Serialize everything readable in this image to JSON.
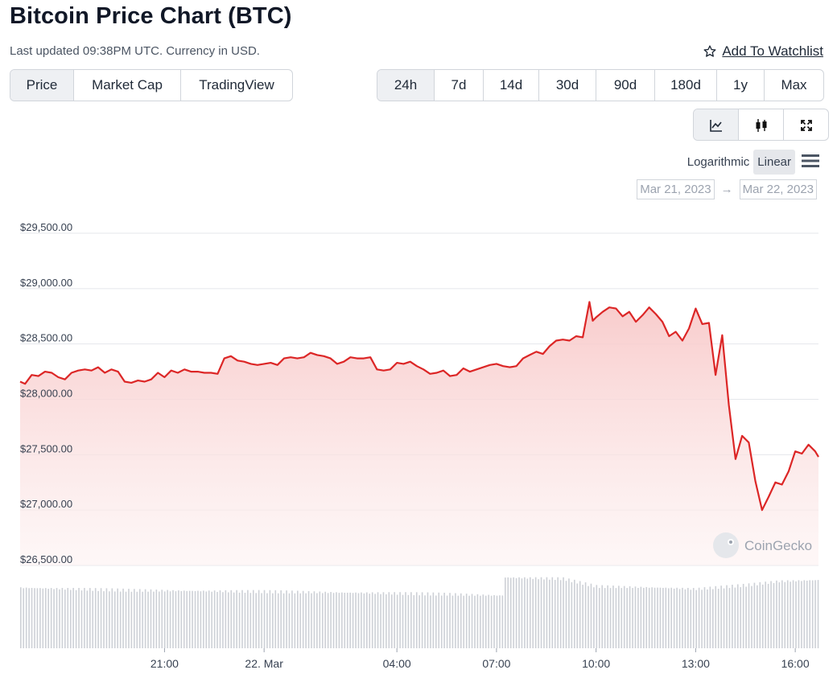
{
  "header": {
    "title": "Bitcoin Price Chart (BTC)",
    "subtitle": "Last updated 09:38PM UTC. Currency in USD.",
    "watchlist_label": "Add To Watchlist",
    "watchlist_icon": "star-outline-icon"
  },
  "view_tabs": [
    {
      "label": "Price",
      "active": true
    },
    {
      "label": "Market Cap",
      "active": false
    },
    {
      "label": "TradingView",
      "active": false
    }
  ],
  "range_tabs": [
    {
      "label": "24h",
      "active": true
    },
    {
      "label": "7d",
      "active": false
    },
    {
      "label": "14d",
      "active": false
    },
    {
      "label": "30d",
      "active": false
    },
    {
      "label": "90d",
      "active": false
    },
    {
      "label": "180d",
      "active": false
    },
    {
      "label": "1y",
      "active": false
    },
    {
      "label": "Max",
      "active": false
    }
  ],
  "chart_type_icons": [
    "line-chart-icon",
    "candlestick-icon",
    "fullscreen-icon"
  ],
  "scale": {
    "options": [
      "Logarithmic",
      "Linear"
    ],
    "active": "Linear",
    "menu_icon": "hamburger-menu-icon"
  },
  "date_range": {
    "from": "Mar 21, 2023",
    "arrow": "→",
    "to": "Mar 22, 2023"
  },
  "watermark": {
    "text": "CoinGecko",
    "icon": "coingecko-logo-icon"
  },
  "colors": {
    "line": "#dc2626",
    "area_top": "#fbd5d5",
    "volume": "#cdd0d6",
    "grid": "#e5e7eb"
  },
  "chart_data": {
    "type": "area",
    "title": "",
    "xlabel": "",
    "ylabel": "",
    "ylim": [
      26500,
      29500
    ],
    "y_ticks": [
      "$29,500.00",
      "$29,000.00",
      "$28,500.00",
      "$28,000.00",
      "$27,500.00",
      "$27,000.00",
      "$26,500.00"
    ],
    "y_tick_values": [
      29500,
      29000,
      28500,
      28000,
      27500,
      27000,
      26500
    ],
    "x_ticks": [
      "21:00",
      "22. Mar",
      "04:00",
      "07:00",
      "10:00",
      "13:00",
      "16:00"
    ],
    "x_tick_hours": [
      21,
      24,
      28,
      31,
      34,
      37,
      40
    ],
    "x_range_hours": [
      16.65,
      40.7
    ],
    "series": [
      {
        "points": [
          [
            16.65,
            28160
          ],
          [
            16.8,
            28140
          ],
          [
            17.0,
            28220
          ],
          [
            17.2,
            28210
          ],
          [
            17.4,
            28250
          ],
          [
            17.6,
            28240
          ],
          [
            17.8,
            28200
          ],
          [
            18.0,
            28180
          ],
          [
            18.2,
            28240
          ],
          [
            18.4,
            28260
          ],
          [
            18.6,
            28270
          ],
          [
            18.8,
            28260
          ],
          [
            19.0,
            28290
          ],
          [
            19.2,
            28240
          ],
          [
            19.4,
            28270
          ],
          [
            19.6,
            28250
          ],
          [
            19.8,
            28160
          ],
          [
            20.0,
            28150
          ],
          [
            20.2,
            28170
          ],
          [
            20.4,
            28160
          ],
          [
            20.6,
            28180
          ],
          [
            20.8,
            28240
          ],
          [
            21.0,
            28200
          ],
          [
            21.2,
            28260
          ],
          [
            21.4,
            28240
          ],
          [
            21.6,
            28270
          ],
          [
            21.8,
            28250
          ],
          [
            22.0,
            28250
          ],
          [
            22.2,
            28240
          ],
          [
            22.4,
            28240
          ],
          [
            22.6,
            28230
          ],
          [
            22.8,
            28370
          ],
          [
            23.0,
            28390
          ],
          [
            23.2,
            28350
          ],
          [
            23.4,
            28340
          ],
          [
            23.6,
            28320
          ],
          [
            23.8,
            28310
          ],
          [
            24.0,
            28320
          ],
          [
            24.2,
            28330
          ],
          [
            24.4,
            28310
          ],
          [
            24.6,
            28370
          ],
          [
            24.8,
            28380
          ],
          [
            25.0,
            28370
          ],
          [
            25.2,
            28380
          ],
          [
            25.4,
            28420
          ],
          [
            25.6,
            28400
          ],
          [
            25.8,
            28390
          ],
          [
            26.0,
            28370
          ],
          [
            26.2,
            28320
          ],
          [
            26.4,
            28340
          ],
          [
            26.6,
            28380
          ],
          [
            26.8,
            28370
          ],
          [
            27.0,
            28370
          ],
          [
            27.2,
            28380
          ],
          [
            27.4,
            28270
          ],
          [
            27.6,
            28260
          ],
          [
            27.8,
            28270
          ],
          [
            28.0,
            28330
          ],
          [
            28.2,
            28320
          ],
          [
            28.4,
            28340
          ],
          [
            28.6,
            28300
          ],
          [
            28.8,
            28270
          ],
          [
            29.0,
            28230
          ],
          [
            29.2,
            28240
          ],
          [
            29.4,
            28260
          ],
          [
            29.6,
            28210
          ],
          [
            29.8,
            28220
          ],
          [
            30.0,
            28280
          ],
          [
            30.2,
            28250
          ],
          [
            30.4,
            28270
          ],
          [
            30.6,
            28290
          ],
          [
            30.8,
            28310
          ],
          [
            31.0,
            28320
          ],
          [
            31.2,
            28300
          ],
          [
            31.4,
            28290
          ],
          [
            31.6,
            28300
          ],
          [
            31.8,
            28370
          ],
          [
            32.0,
            28400
          ],
          [
            32.2,
            28430
          ],
          [
            32.4,
            28410
          ],
          [
            32.6,
            28480
          ],
          [
            32.8,
            28530
          ],
          [
            33.0,
            28540
          ],
          [
            33.2,
            28530
          ],
          [
            33.4,
            28570
          ],
          [
            33.6,
            28560
          ],
          [
            33.8,
            28880
          ],
          [
            33.9,
            28710
          ],
          [
            34.0,
            28740
          ],
          [
            34.2,
            28790
          ],
          [
            34.4,
            28830
          ],
          [
            34.6,
            28820
          ],
          [
            34.8,
            28750
          ],
          [
            35.0,
            28790
          ],
          [
            35.2,
            28700
          ],
          [
            35.4,
            28760
          ],
          [
            35.6,
            28830
          ],
          [
            35.8,
            28770
          ],
          [
            36.0,
            28700
          ],
          [
            36.2,
            28570
          ],
          [
            36.4,
            28610
          ],
          [
            36.6,
            28530
          ],
          [
            36.8,
            28640
          ],
          [
            37.0,
            28820
          ],
          [
            37.2,
            28680
          ],
          [
            37.4,
            28690
          ],
          [
            37.6,
            28220
          ],
          [
            37.8,
            28580
          ],
          [
            38.0,
            27950
          ],
          [
            38.2,
            27460
          ],
          [
            38.4,
            27670
          ],
          [
            38.6,
            27610
          ],
          [
            38.8,
            27260
          ],
          [
            39.0,
            27000
          ],
          [
            39.2,
            27120
          ],
          [
            39.4,
            27250
          ],
          [
            39.6,
            27230
          ],
          [
            39.8,
            27350
          ],
          [
            40.0,
            27530
          ],
          [
            40.2,
            27510
          ],
          [
            40.4,
            27590
          ],
          [
            40.6,
            27530
          ],
          [
            40.7,
            27480
          ]
        ]
      }
    ],
    "volume": {
      "ylim": [
        0,
        100
      ],
      "points": [
        [
          16.65,
          47
        ],
        [
          20.0,
          45
        ],
        [
          24.0,
          44
        ],
        [
          27.0,
          43
        ],
        [
          29.5,
          42
        ],
        [
          31.0,
          41
        ],
        [
          31.2,
          55
        ],
        [
          33.0,
          54
        ],
        [
          34.0,
          48
        ],
        [
          36.0,
          47
        ],
        [
          37.0,
          46
        ],
        [
          38.5,
          49
        ],
        [
          39.5,
          52
        ],
        [
          40.7,
          53
        ]
      ]
    },
    "grid": true,
    "legend": "none"
  }
}
